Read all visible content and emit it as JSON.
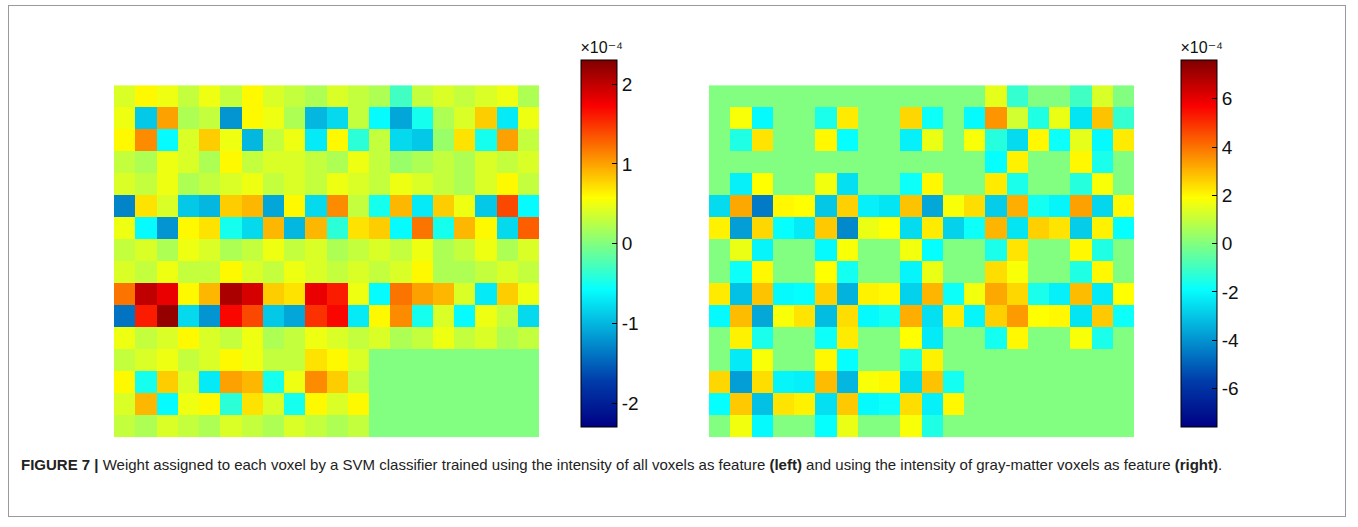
{
  "chart_data": [
    {
      "type": "heatmap",
      "color": "Jet",
      "tick_labels": false,
      "colorbar_title": "×10⁻⁴",
      "color_range": [
        -2.3,
        2.3
      ],
      "color_ticks": [
        -2,
        -1,
        0,
        1,
        2
      ],
      "cells": [
        [
          0.4,
          0.6,
          0.5,
          0.3,
          0.5,
          0.3,
          0.6,
          0.4,
          0.3,
          0.2,
          0.4,
          0.3,
          0.2,
          -0.3,
          0.3,
          0.4,
          0.3,
          0.4,
          0.5,
          0.2
        ],
        [
          0.5,
          -0.9,
          1.0,
          0.2,
          0.3,
          -1.2,
          0.6,
          0.5,
          0.2,
          -1.0,
          -0.8,
          0.3,
          -0.6,
          -1.1,
          -0.5,
          0.2,
          0.4,
          0.8,
          -0.7,
          0.5
        ],
        [
          0.6,
          1.1,
          -0.6,
          0.4,
          0.8,
          0.5,
          -1.0,
          0.3,
          0.5,
          -0.7,
          0.6,
          -0.4,
          0.3,
          -0.8,
          -0.9,
          0.1,
          0.7,
          -0.5,
          1.0,
          0.3
        ],
        [
          0.3,
          0.2,
          0.5,
          0.4,
          0.2,
          0.6,
          0.3,
          0.4,
          0.4,
          0.3,
          0.2,
          0.5,
          0.3,
          0.1,
          0.2,
          0.3,
          0.2,
          0.4,
          0.3,
          0.4
        ],
        [
          0.4,
          0.3,
          0.5,
          0.2,
          0.3,
          0.4,
          0.5,
          0.3,
          0.4,
          0.3,
          0.5,
          0.4,
          0.3,
          0.5,
          0.4,
          0.3,
          0.2,
          0.4,
          0.6,
          0.3
        ],
        [
          -1.3,
          0.7,
          0.4,
          -0.9,
          -1.0,
          0.8,
          0.9,
          -1.1,
          0.6,
          -0.8,
          1.1,
          0.3,
          -0.5,
          0.9,
          -0.7,
          0.8,
          0.5,
          -0.9,
          1.4,
          -0.6
        ],
        [
          0.5,
          -0.6,
          -1.2,
          0.6,
          0.7,
          -0.5,
          -0.8,
          0.9,
          -1.0,
          0.9,
          -0.4,
          0.7,
          0.8,
          -0.6,
          1.2,
          -0.5,
          0.9,
          0.6,
          -0.8,
          1.3
        ],
        [
          0.3,
          0.4,
          0.2,
          0.5,
          0.4,
          0.2,
          0.3,
          0.5,
          0.3,
          0.4,
          0.2,
          0.3,
          0.4,
          0.3,
          0.5,
          0.2,
          0.3,
          0.5,
          0.2,
          0.4
        ],
        [
          0.4,
          0.3,
          0.5,
          0.3,
          0.3,
          0.6,
          0.4,
          0.3,
          0.5,
          0.4,
          0.3,
          0.4,
          0.3,
          0.4,
          0.6,
          0.2,
          0.2,
          0.3,
          0.4,
          0.3
        ],
        [
          1.2,
          2.0,
          1.8,
          0.6,
          0.9,
          2.1,
          1.9,
          0.8,
          0.7,
          1.8,
          1.6,
          0.5,
          -0.6,
          1.2,
          1.0,
          0.9,
          0.4,
          -0.7,
          0.8,
          0.5
        ],
        [
          -1.4,
          1.6,
          2.2,
          -0.8,
          -1.2,
          1.7,
          1.4,
          -0.9,
          -1.1,
          1.5,
          1.7,
          -0.7,
          0.6,
          1.1,
          -0.5,
          0.4,
          -0.6,
          0.5,
          0.3,
          -0.8
        ],
        [
          0.5,
          0.3,
          0.4,
          0.6,
          0.4,
          0.3,
          0.5,
          0.2,
          0.3,
          0.5,
          0.4,
          0.3,
          0.4,
          0.2,
          0.3,
          0.5,
          0.3,
          0.4,
          0.2,
          0.3
        ],
        [
          0.3,
          0.4,
          0.5,
          0.3,
          0.4,
          0.6,
          0.5,
          0.3,
          0.3,
          0.7,
          0.6,
          0.4,
          0,
          0,
          0,
          0,
          0,
          0,
          0,
          0
        ],
        [
          0.6,
          -0.5,
          0.8,
          0.4,
          -0.7,
          1.0,
          0.9,
          -0.5,
          0.5,
          1.1,
          0.8,
          0.3,
          0,
          0,
          0,
          0,
          0,
          0,
          0,
          0
        ],
        [
          0.4,
          0.9,
          -0.6,
          0.5,
          0.6,
          -0.4,
          0.7,
          0.4,
          -0.5,
          0.6,
          0.4,
          0.6,
          0,
          0,
          0,
          0,
          0,
          0,
          0,
          0
        ],
        [
          0.3,
          0.2,
          0.4,
          0.3,
          0.2,
          0.4,
          0.3,
          0.2,
          0.4,
          0.3,
          0.2,
          0.3,
          0,
          0,
          0,
          0,
          0,
          0,
          0,
          0
        ]
      ]
    },
    {
      "type": "heatmap",
      "color": "Jet",
      "tick_labels": false,
      "colorbar_title": "×10⁻⁴",
      "color_range": [
        -7.6,
        7.6
      ],
      "color_ticks": [
        -6,
        -4,
        -2,
        0,
        2,
        4,
        6
      ],
      "cells": [
        [
          0,
          0,
          0,
          0,
          0,
          0,
          0,
          0,
          0,
          0,
          0,
          0,
          0,
          1.5,
          -1.2,
          0,
          0,
          -1.0,
          1.3,
          0
        ],
        [
          0,
          1.8,
          -2.0,
          0,
          0,
          -1.6,
          2.2,
          0,
          0,
          2.5,
          -1.8,
          0,
          -2.0,
          3.5,
          1.2,
          -1.5,
          1.6,
          -2.4,
          2.8,
          -1.2
        ],
        [
          0,
          -1.5,
          2.3,
          0,
          0,
          2.0,
          -1.9,
          0,
          0,
          -2.2,
          1.6,
          0,
          1.8,
          -1.4,
          -2.6,
          2.0,
          -1.8,
          1.5,
          -2.0,
          2.2
        ],
        [
          0,
          0,
          0,
          0,
          0,
          0,
          0,
          0,
          0,
          0,
          0,
          0,
          0,
          -1.9,
          2.1,
          0,
          0,
          2.0,
          -1.6,
          0
        ],
        [
          0,
          -2.2,
          1.9,
          0,
          0,
          1.7,
          -2.5,
          0,
          0,
          -1.8,
          2.0,
          0,
          0,
          2.2,
          -1.6,
          0,
          0,
          -1.4,
          1.8,
          0
        ],
        [
          -2.6,
          3.2,
          -4.5,
          2.0,
          1.9,
          -3.0,
          2.6,
          -2.2,
          -2.4,
          2.8,
          -3.6,
          1.8,
          2.4,
          -2.9,
          3.1,
          -1.7,
          -2.1,
          3.3,
          -2.7,
          2.0
        ],
        [
          2.1,
          -3.8,
          2.5,
          -1.9,
          -2.3,
          2.7,
          -4.2,
          1.6,
          1.9,
          -2.6,
          2.2,
          -2.8,
          -1.8,
          3.0,
          -2.4,
          2.6,
          2.3,
          -2.9,
          2.1,
          -1.9
        ],
        [
          0,
          1.6,
          -2.1,
          0,
          0,
          -2.0,
          1.8,
          0,
          0,
          1.7,
          -1.9,
          0,
          0,
          -1.6,
          2.3,
          0,
          0,
          2.0,
          -1.5,
          0
        ],
        [
          0,
          -1.8,
          2.0,
          0,
          0,
          1.9,
          -1.7,
          0,
          0,
          -2.1,
          1.6,
          0,
          0,
          2.4,
          1.8,
          0,
          0,
          -1.5,
          2.0,
          0
        ],
        [
          2.2,
          -3.1,
          2.8,
          -2.0,
          -1.9,
          2.6,
          -3.4,
          2.1,
          2.0,
          -2.8,
          3.0,
          -1.8,
          1.7,
          3.2,
          2.5,
          -1.6,
          -2.2,
          2.9,
          -2.3,
          1.9
        ],
        [
          -2.0,
          2.9,
          -3.6,
          1.8,
          2.3,
          -3.2,
          2.4,
          -2.0,
          -1.7,
          3.1,
          -2.5,
          2.2,
          -2.1,
          2.6,
          3.4,
          1.9,
          2.0,
          -2.4,
          2.7,
          -1.8
        ],
        [
          0,
          2.1,
          -1.6,
          0,
          0,
          -1.8,
          2.2,
          0,
          0,
          1.9,
          -2.3,
          0,
          0,
          -1.7,
          2.0,
          0,
          0,
          1.8,
          -1.6,
          0
        ],
        [
          0,
          -2.3,
          1.8,
          0,
          0,
          2.0,
          -1.9,
          0,
          0,
          -1.6,
          2.1,
          0,
          0,
          0,
          0,
          0,
          0,
          0,
          0,
          0
        ],
        [
          2.5,
          -3.8,
          2.4,
          -2.1,
          -2.2,
          2.9,
          -3.3,
          1.8,
          2.0,
          -2.6,
          2.8,
          -1.7,
          0,
          0,
          0,
          0,
          0,
          0,
          0,
          0
        ],
        [
          -1.9,
          2.7,
          -3.1,
          2.3,
          2.1,
          -2.5,
          2.7,
          -2.0,
          -1.8,
          2.4,
          -2.2,
          2.0,
          0,
          0,
          0,
          0,
          0,
          0,
          0,
          0
        ],
        [
          0,
          1.7,
          -2.0,
          0,
          0,
          -1.9,
          1.6,
          0,
          0,
          1.8,
          -1.5,
          0,
          0,
          0,
          0,
          0,
          0,
          0,
          0,
          0
        ]
      ]
    }
  ],
  "caption": [
    {
      "text": "FIGURE 7 |",
      "bold": true
    },
    {
      "text": " Weight assigned to each voxel by a SVM classifier trained using the intensity of all voxels as feature ",
      "bold": false
    },
    {
      "text": "(left)",
      "bold": true
    },
    {
      "text": " and using the intensity of gray-matter voxels as feature ",
      "bold": false
    },
    {
      "text": "(right)",
      "bold": true
    },
    {
      "text": ".",
      "bold": false
    }
  ]
}
